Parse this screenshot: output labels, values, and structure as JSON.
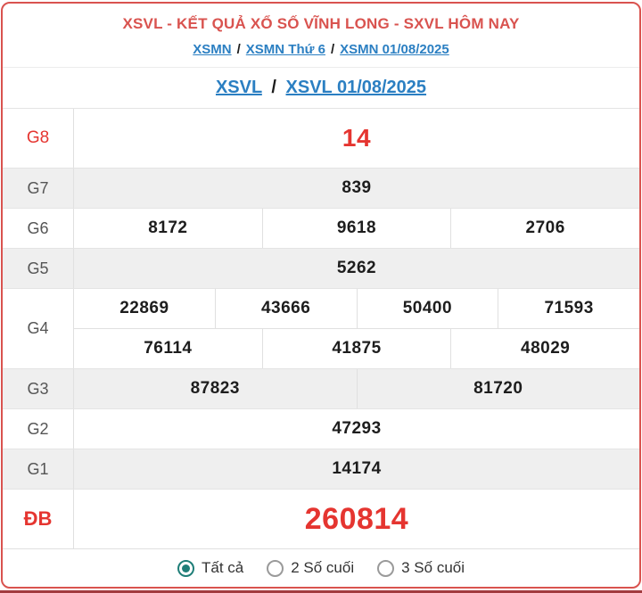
{
  "colors": {
    "card_border_red": "#d9534f",
    "title_red": "#d9534f",
    "value_red": "#e53530",
    "link_blue": "#2b7fc2",
    "shaded_row_gray": "#efefef",
    "radio_selected_teal": "#1f7e78",
    "bottom_bar_maroon": "#a23b3f"
  },
  "header": {
    "title": "XSVL - KẾT QUẢ XỔ SỐ VĨNH LONG - SXVL HÔM NAY",
    "separator": "/",
    "breadcrumb": [
      {
        "label": "XSMN"
      },
      {
        "label": "XSMN Thứ 6"
      },
      {
        "label": "XSMN 01/08/2025"
      }
    ]
  },
  "subheader": {
    "separator": "/",
    "links": [
      {
        "label": "XSVL"
      },
      {
        "label": "XSVL 01/08/2025"
      }
    ]
  },
  "results": {
    "rows": [
      {
        "label": "G8",
        "highlight": true,
        "emphasis": "large",
        "groups": [
          [
            "14"
          ]
        ]
      },
      {
        "label": "G7",
        "highlight": false,
        "emphasis": "normal",
        "groups": [
          [
            "839"
          ]
        ]
      },
      {
        "label": "G6",
        "highlight": false,
        "emphasis": "normal",
        "groups": [
          [
            "8172",
            "9618",
            "2706"
          ]
        ]
      },
      {
        "label": "G5",
        "highlight": false,
        "emphasis": "normal",
        "groups": [
          [
            "5262"
          ]
        ]
      },
      {
        "label": "G4",
        "highlight": false,
        "emphasis": "normal",
        "groups": [
          [
            "22869",
            "43666",
            "50400",
            "71593"
          ],
          [
            "76114",
            "41875",
            "48029"
          ]
        ]
      },
      {
        "label": "G3",
        "highlight": false,
        "emphasis": "normal",
        "groups": [
          [
            "87823",
            "81720"
          ]
        ]
      },
      {
        "label": "G2",
        "highlight": false,
        "emphasis": "normal",
        "groups": [
          [
            "47293"
          ]
        ]
      },
      {
        "label": "G1",
        "highlight": false,
        "emphasis": "normal",
        "groups": [
          [
            "14174"
          ]
        ]
      },
      {
        "label": "ĐB",
        "highlight": true,
        "emphasis": "xlarge",
        "groups": [
          [
            "260814"
          ]
        ]
      }
    ]
  },
  "footer": {
    "options": [
      {
        "label": "Tất cả",
        "selected": true
      },
      {
        "label": "2 Số cuối",
        "selected": false
      },
      {
        "label": "3 Số cuối",
        "selected": false
      }
    ]
  }
}
